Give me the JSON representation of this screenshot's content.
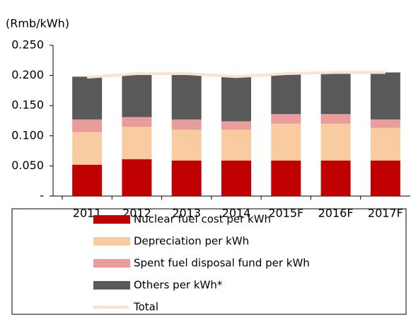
{
  "chart_data": {
    "type": "bar",
    "stacked": true,
    "y_label": "(Rmb/kWh)",
    "categories": [
      "2011",
      "2012",
      "2013",
      "2014",
      "2015F",
      "2016F",
      "2017F"
    ],
    "series": [
      {
        "name": "Nuclear fuel cost per kWh",
        "color": "#c00000",
        "values": [
          0.052,
          0.061,
          0.059,
          0.059,
          0.059,
          0.059,
          0.059
        ]
      },
      {
        "name": "Depreciation per kWh",
        "color": "#f9cba0",
        "values": [
          0.054,
          0.054,
          0.051,
          0.051,
          0.061,
          0.061,
          0.054
        ]
      },
      {
        "name": "Spent fuel disposal fund per kWh",
        "color": "#e89c9c",
        "values": [
          0.021,
          0.016,
          0.017,
          0.014,
          0.016,
          0.016,
          0.014
        ]
      },
      {
        "name": "Others per kWh*",
        "color": "#595959",
        "values": [
          0.071,
          0.072,
          0.076,
          0.074,
          0.067,
          0.069,
          0.078
        ]
      },
      {
        "name": "Total",
        "color": "#f9e3cf",
        "type": "line",
        "values": [
          0.197,
          0.203,
          0.203,
          0.198,
          0.203,
          0.205,
          0.205
        ]
      }
    ],
    "ylim": [
      0,
      0.25
    ],
    "yticks": [
      {
        "value": 0,
        "label": "-"
      },
      {
        "value": 0.05,
        "label": "0.050"
      },
      {
        "value": 0.1,
        "label": "0.100"
      },
      {
        "value": 0.15,
        "label": "0.150"
      },
      {
        "value": 0.2,
        "label": "0.200"
      },
      {
        "value": 0.25,
        "label": "0.250"
      }
    ]
  }
}
